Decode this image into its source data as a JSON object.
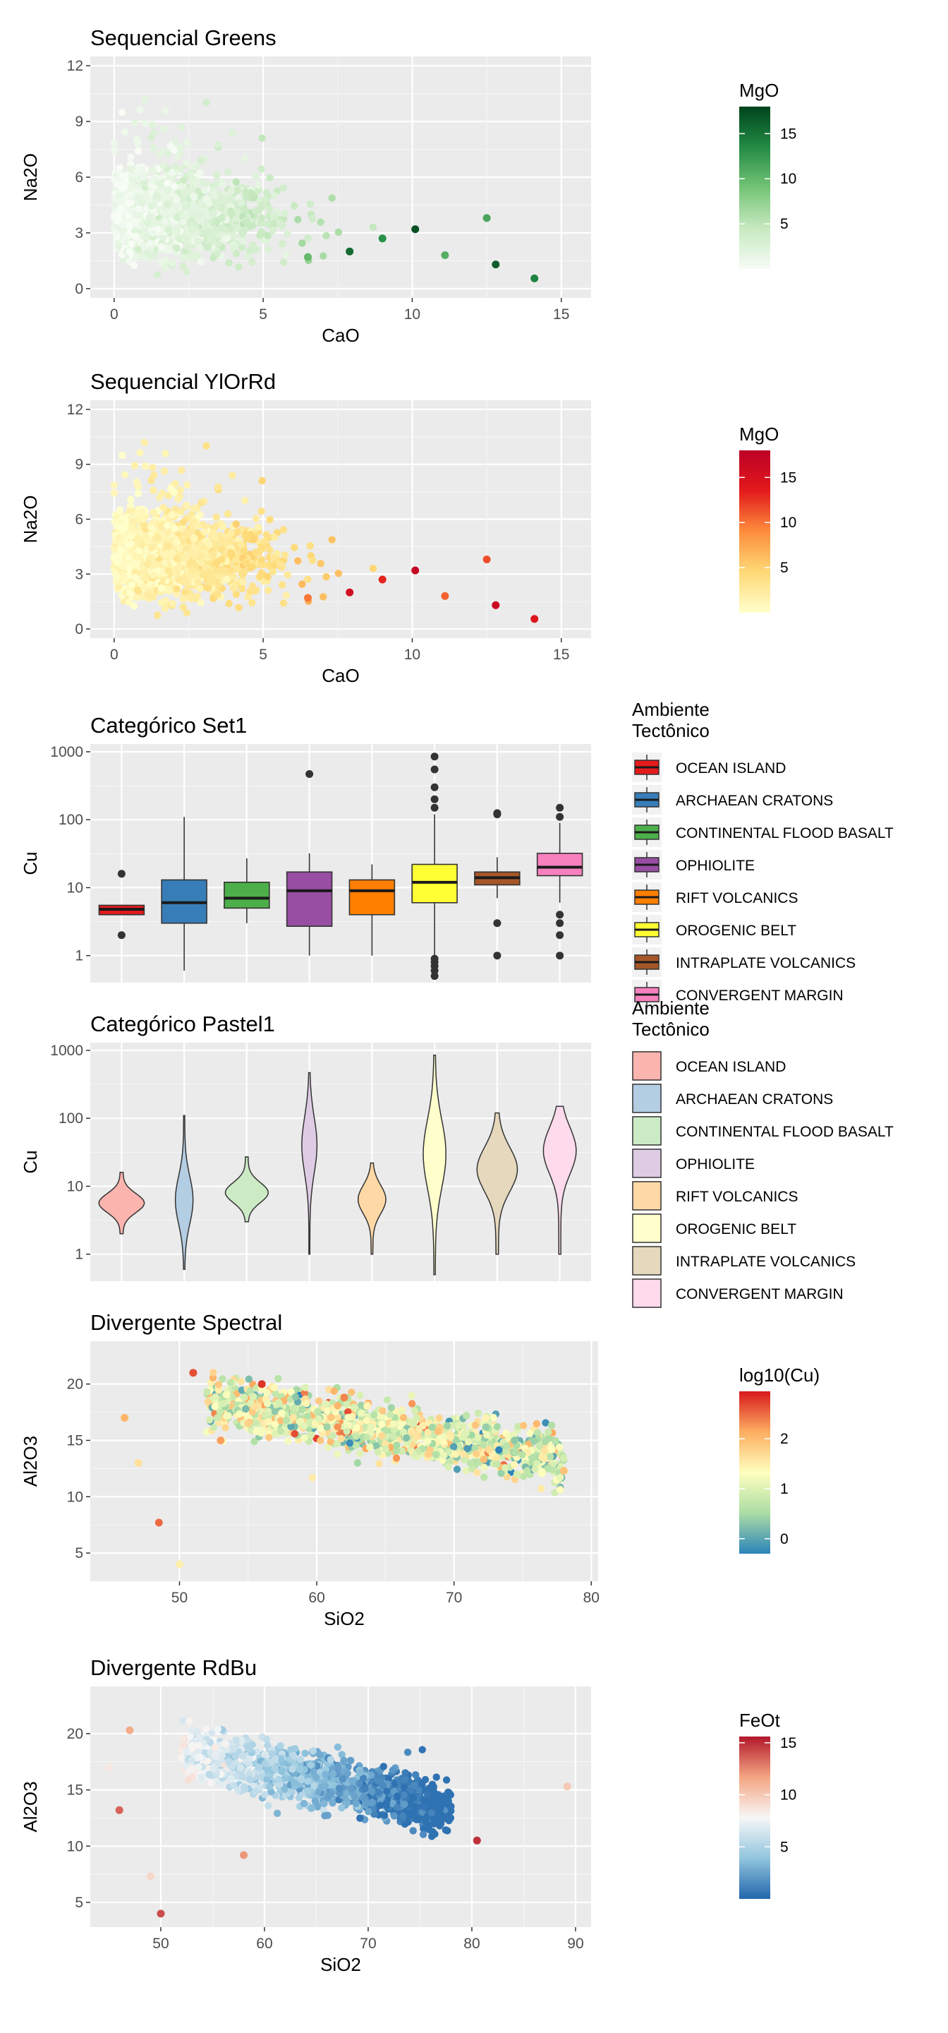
{
  "panels": [
    {
      "id": "greens",
      "chart_data": {
        "type": "scatter",
        "title": "Sequencial Greens",
        "xlabel": "CaO",
        "ylabel": "Na2O",
        "xlim": [
          -0.8,
          16
        ],
        "ylim": [
          -0.5,
          12.5
        ],
        "xticks": [
          0,
          5,
          10,
          15
        ],
        "yticks": [
          0,
          3,
          6,
          9,
          12
        ],
        "legend": {
          "title": "MgO",
          "position": "right",
          "type": "colorbar",
          "ticks": [
            5,
            10,
            15
          ],
          "range": [
            0,
            18
          ],
          "colors": [
            "#f7fcf5",
            "#c7e9c0",
            "#74c476",
            "#238b45",
            "#00441b"
          ]
        },
        "grid": true,
        "point_cloud": "random geochemical samples, Na2O vs CaO colored by MgO",
        "highlight_points": [
          [
            6.5,
            1.7
          ],
          [
            7.9,
            2.0
          ],
          [
            9.0,
            2.7
          ],
          [
            11.1,
            1.8
          ],
          [
            12.8,
            1.3
          ],
          [
            14.1,
            0.55
          ],
          [
            12.5,
            3.8
          ],
          [
            10.1,
            3.2
          ]
        ]
      }
    },
    {
      "id": "ylorrd",
      "chart_data": {
        "type": "scatter",
        "title": "Sequencial YlOrRd",
        "xlabel": "CaO",
        "ylabel": "Na2O",
        "xlim": [
          -0.8,
          16
        ],
        "ylim": [
          -0.5,
          12.5
        ],
        "xticks": [
          0,
          5,
          10,
          15
        ],
        "yticks": [
          0,
          3,
          6,
          9,
          12
        ],
        "legend": {
          "title": "MgO",
          "position": "right",
          "type": "colorbar",
          "ticks": [
            5,
            10,
            15
          ],
          "range": [
            0,
            18
          ],
          "colors": [
            "#ffffcc",
            "#fed976",
            "#fd8d3c",
            "#e31a1c",
            "#bd0026"
          ]
        },
        "grid": true,
        "highlight_points": [
          [
            6.5,
            1.7
          ],
          [
            7.9,
            2.0
          ],
          [
            9.0,
            2.7
          ],
          [
            11.1,
            1.8
          ],
          [
            12.8,
            1.3
          ],
          [
            14.1,
            0.55
          ],
          [
            12.5,
            3.8
          ],
          [
            10.1,
            3.2
          ]
        ]
      }
    },
    {
      "id": "set1",
      "chart_data": {
        "type": "box",
        "title": "Categórico Set1",
        "ylabel": "Cu",
        "yscale": "log10",
        "ylim": [
          0.4,
          1300
        ],
        "yticks": [
          1,
          10,
          100,
          1000
        ],
        "categories": [
          "OCEAN ISLAND",
          "ARCHAEAN CRATONS",
          "CONTINENTAL FLOOD BASALT",
          "OPHIOLITE",
          "RIFT VOLCANICS",
          "OROGENIC BELT",
          "INTRAPLATE VOLCANICS",
          "CONVERGENT MARGIN"
        ],
        "colors": [
          "#e41a1c",
          "#377eb8",
          "#4daf4a",
          "#984ea3",
          "#ff7f00",
          "#ffff33",
          "#a65628",
          "#f781bf"
        ],
        "boxes": [
          {
            "q1": 4,
            "med": 4.8,
            "q3": 5.5,
            "lo": 4,
            "hi": 5.5,
            "out": [
              2,
              16
            ]
          },
          {
            "q1": 3,
            "med": 6,
            "q3": 13,
            "lo": 0.6,
            "hi": 110,
            "out": []
          },
          {
            "q1": 5,
            "med": 7,
            "q3": 12,
            "lo": 3,
            "hi": 27,
            "out": []
          },
          {
            "q1": 2.7,
            "med": 9,
            "q3": 17,
            "lo": 1,
            "hi": 32,
            "out": [
              470
            ]
          },
          {
            "q1": 4,
            "med": 9,
            "q3": 13,
            "lo": 1,
            "hi": 22,
            "out": []
          },
          {
            "q1": 6,
            "med": 12,
            "q3": 22,
            "lo": 0.9,
            "hi": 120,
            "out": [
              0.5,
              0.6,
              0.7,
              0.8,
              0.9,
              150,
              200,
              300,
              550,
              850
            ]
          },
          {
            "q1": 11,
            "med": 14,
            "q3": 17,
            "lo": 7,
            "hi": 28,
            "out": [
              1,
              3,
              120,
              125
            ]
          },
          {
            "q1": 15,
            "med": 20,
            "q3": 32,
            "lo": 6,
            "hi": 90,
            "out": [
              1,
              2,
              3,
              4,
              110,
              150
            ]
          }
        ],
        "legend": {
          "title_line1": "Ambiente",
          "title_line2": "Tectônico",
          "position": "right"
        },
        "grid": true
      }
    },
    {
      "id": "pastel1",
      "chart_data": {
        "type": "violin",
        "title": "Categórico Pastel1",
        "ylabel": "Cu",
        "yscale": "log10",
        "ylim": [
          0.4,
          1300
        ],
        "yticks": [
          1,
          10,
          100,
          1000
        ],
        "categories": [
          "OCEAN ISLAND",
          "ARCHAEAN CRATONS",
          "CONTINENTAL FLOOD BASALT",
          "OPHIOLITE",
          "RIFT VOLCANICS",
          "OROGENIC BELT",
          "INTRAPLATE VOLCANICS",
          "CONVERGENT MARGIN"
        ],
        "colors": [
          "#fbb4ae",
          "#b3cde3",
          "#ccebc5",
          "#decbe4",
          "#fed9a6",
          "#ffffcc",
          "#e5d8bd",
          "#fddaec"
        ],
        "ranges": [
          [
            2,
            16
          ],
          [
            0.6,
            110
          ],
          [
            3,
            27
          ],
          [
            1,
            470
          ],
          [
            1,
            22
          ],
          [
            0.5,
            850
          ],
          [
            1,
            120
          ],
          [
            1,
            150
          ]
        ],
        "legend": {
          "title_line1": "Ambiente",
          "title_line2": "Tectônico",
          "position": "right"
        },
        "grid": true
      }
    },
    {
      "id": "spectral",
      "chart_data": {
        "type": "scatter",
        "title": "Divergente Spectral",
        "xlabel": "SiO2",
        "ylabel": "Al2O3",
        "xlim": [
          43.5,
          80.5
        ],
        "ylim": [
          2.5,
          23.8
        ],
        "xticks": [
          50,
          60,
          70,
          80
        ],
        "yticks": [
          5,
          10,
          15,
          20
        ],
        "legend": {
          "title": "log10(Cu)",
          "position": "right",
          "type": "colorbar",
          "ticks": [
            0,
            1,
            2
          ],
          "range": [
            -0.3,
            2.95
          ],
          "colors": [
            "#2b83ba",
            "#abdda4",
            "#ffffbf",
            "#fdae61",
            "#d7191c"
          ]
        },
        "grid": true,
        "highlight_points": [
          [
            50,
            4
          ],
          [
            48.5,
            7.7
          ],
          [
            46,
            17
          ],
          [
            47,
            13
          ],
          [
            51,
            21
          ],
          [
            53,
            15
          ],
          [
            55,
            16.5
          ],
          [
            56,
            20
          ],
          [
            62,
            18.8
          ],
          [
            78,
            12.3
          ]
        ]
      }
    },
    {
      "id": "rdbu",
      "chart_data": {
        "type": "scatter",
        "title": "Divergente RdBu",
        "xlabel": "SiO2",
        "ylabel": "Al2O3",
        "xlim": [
          43.2,
          91.5
        ],
        "ylim": [
          2.8,
          24.2
        ],
        "xticks": [
          50,
          60,
          70,
          80,
          90
        ],
        "yticks": [
          5,
          10,
          15,
          20
        ],
        "legend": {
          "title": "FeOt",
          "position": "right",
          "type": "colorbar",
          "ticks": [
            5,
            10,
            15
          ],
          "range": [
            0,
            15.6
          ],
          "colors": [
            "#2166ac",
            "#92c5de",
            "#f7f7f7",
            "#f4a582",
            "#b2182b"
          ]
        },
        "grid": true,
        "highlight_points": [
          [
            45,
            17
          ],
          [
            46,
            13.2
          ],
          [
            47,
            20.3
          ],
          [
            49,
            7.3
          ],
          [
            50,
            4
          ],
          [
            58,
            9.2
          ],
          [
            89.2,
            15.3
          ],
          [
            80.5,
            10.5
          ]
        ]
      }
    }
  ]
}
